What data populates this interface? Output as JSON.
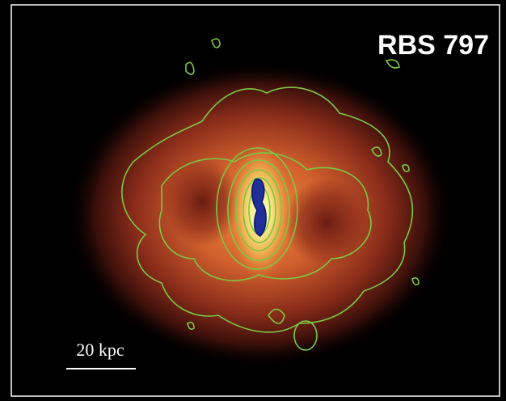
{
  "title": "RBS 797",
  "scale_bar": {
    "label": "20 kpc"
  }
}
